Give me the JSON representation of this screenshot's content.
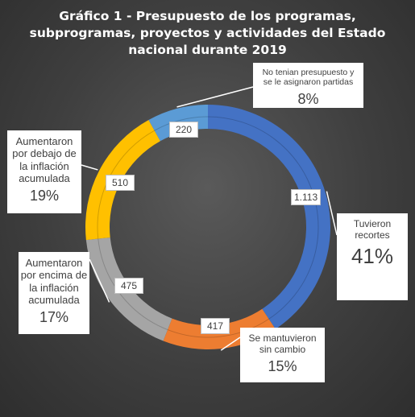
{
  "chart_data": {
    "type": "pie",
    "variant": "doughnut",
    "title_lines": [
      "Gráfico 1 - Presupuesto de los programas,",
      "subprogramas, proyectos y actividades del Estado",
      "nacional durante 2019"
    ],
    "slices": [
      {
        "key": "recortes",
        "label_lines": [
          "Tuvieron",
          "recortes"
        ],
        "value": 1113,
        "value_label": "1.113",
        "percent_label": "41%",
        "color": "#4472c4"
      },
      {
        "key": "sin_cambio",
        "label_lines": [
          "Se mantuvieron",
          "sin cambio"
        ],
        "value": 417,
        "value_label": "417",
        "percent_label": "15%",
        "color": "#ed7d31"
      },
      {
        "key": "encima",
        "label_lines": [
          "Aumentaron",
          "por encima de",
          "la inflación",
          "acumulada"
        ],
        "value": 475,
        "value_label": "475",
        "percent_label": "17%",
        "color": "#a5a5a5"
      },
      {
        "key": "debajo",
        "label_lines": [
          "Aumentaron",
          "por debajo de",
          "la inflación",
          "acumulada"
        ],
        "value": 510,
        "value_label": "510",
        "percent_label": "19%",
        "color": "#ffc000"
      },
      {
        "key": "sin_presupuesto",
        "label_lines": [
          "No tenian presupuesto y",
          "se le asignaron partidas"
        ],
        "value": 220,
        "value_label": "220",
        "percent_label": "8%",
        "color": "#5b9bd5"
      }
    ],
    "legend": "none"
  }
}
